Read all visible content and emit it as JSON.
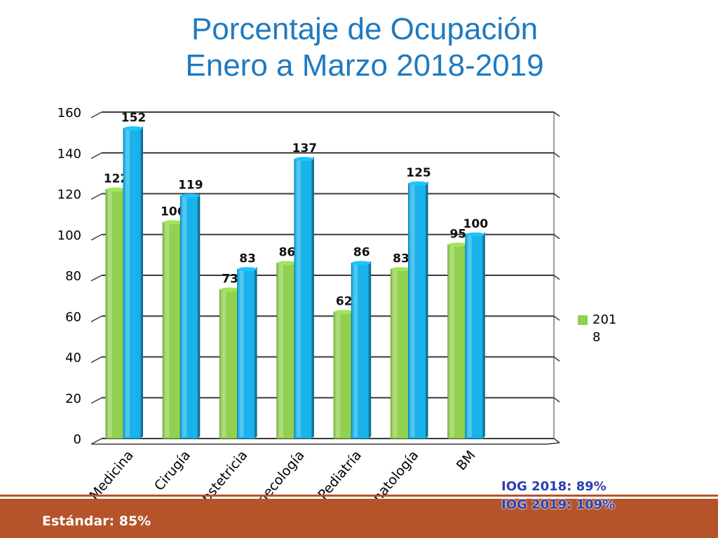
{
  "chart_data": {
    "type": "bar",
    "title_line1": "Porcentaje de Ocupación",
    "title_line2": "Enero a Marzo 2018-2019",
    "categories": [
      "Medicina",
      "Cirugía",
      "Obstetricia",
      "Ginecología",
      "Pediatría",
      "Neonatología",
      "BM"
    ],
    "series": [
      {
        "name": "2018",
        "values": [
          122,
          106,
          73,
          86,
          62,
          83,
          95
        ],
        "color": "#92d050"
      },
      {
        "name": "",
        "values": [
          152,
          119,
          83,
          137,
          86,
          125,
          100
        ],
        "color": "#1ab2ea"
      }
    ],
    "yticks": [
      0,
      20,
      40,
      60,
      80,
      100,
      120,
      140,
      160
    ],
    "ylim": [
      0,
      160
    ],
    "grid": true,
    "legend_position": "right",
    "legend_label_line1": "201",
    "legend_label_line2": "8"
  },
  "notes": {
    "iog_2018": "IOG 2018: 89%",
    "iog_2019": "IOG 2019: 109%",
    "standard": "Estándar: 85%"
  }
}
